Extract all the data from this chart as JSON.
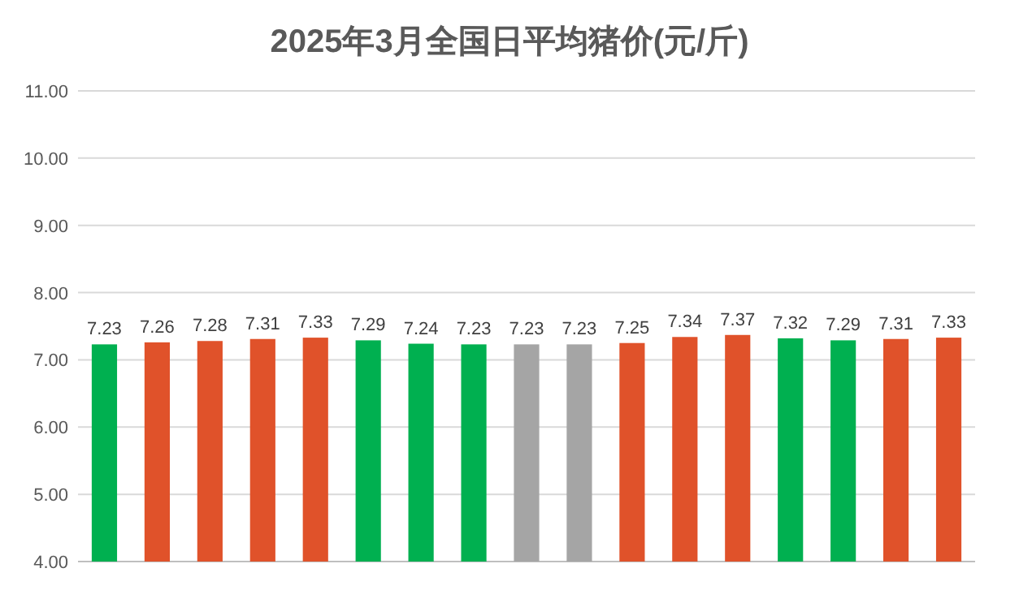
{
  "chart_data": {
    "type": "bar",
    "title": "2025年3月全国日平均猪价(元/斤)",
    "categories": [
      null,
      null,
      null,
      null,
      null,
      null,
      null,
      null,
      null,
      null,
      null,
      null,
      null,
      null,
      null,
      null,
      null
    ],
    "values": [
      7.23,
      7.26,
      7.28,
      7.31,
      7.33,
      7.29,
      7.24,
      7.23,
      7.23,
      7.23,
      7.25,
      7.34,
      7.37,
      7.32,
      7.29,
      7.31,
      7.33
    ],
    "colors": [
      "#00b050",
      "#e0522a",
      "#e0522a",
      "#e0522a",
      "#e0522a",
      "#00b050",
      "#00b050",
      "#00b050",
      "#a5a5a5",
      "#a5a5a5",
      "#e0522a",
      "#e0522a",
      "#e0522a",
      "#00b050",
      "#00b050",
      "#e0522a",
      "#e0522a"
    ],
    "ylim": [
      4,
      11
    ],
    "yticks": [
      {
        "value": 4,
        "label": "4.00"
      },
      {
        "value": 5,
        "label": "5.00"
      },
      {
        "value": 6,
        "label": "6.00"
      },
      {
        "value": 7,
        "label": "7.00"
      },
      {
        "value": 8,
        "label": "8.00"
      },
      {
        "value": 9,
        "label": "9.00"
      },
      {
        "value": 10,
        "label": "10.00"
      },
      {
        "value": 11,
        "label": "11.00"
      }
    ],
    "grid": "y",
    "data_labels": true
  }
}
